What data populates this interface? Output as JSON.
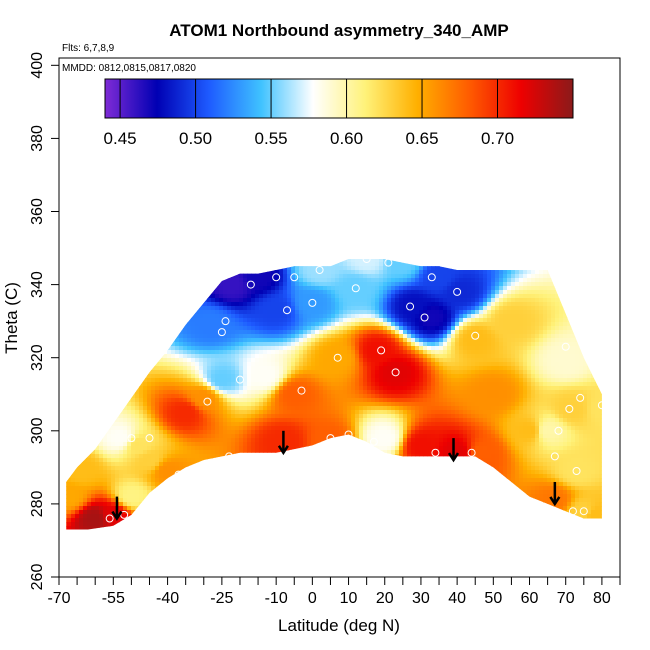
{
  "chart_data": {
    "type": "heatmap",
    "title": "ATOM1 Northbound asymmetry_340_AMP",
    "flights_note": "Flts: 6,7,8,9",
    "dates_note": "MMDD: 0812,0815,0817,0820",
    "xlabel": "Latitude (deg N)",
    "ylabel": "Theta (C)",
    "xlim": [
      -70,
      85
    ],
    "ylim": [
      260,
      402
    ],
    "x_ticks_major": [
      -70,
      -55,
      -40,
      -25,
      -10,
      0,
      10,
      20,
      30,
      40,
      50,
      60,
      70,
      80
    ],
    "x_ticks_minor": [
      -65,
      -60,
      -50,
      -45,
      -35,
      -30,
      -20,
      -15,
      -5,
      5,
      15,
      25,
      35,
      45,
      55,
      65,
      75,
      85
    ],
    "y_ticks": [
      260,
      280,
      300,
      320,
      340,
      360,
      380,
      400
    ],
    "colorbar": {
      "range": [
        0.44,
        0.75
      ],
      "ticks": [
        0.45,
        0.5,
        0.55,
        0.6,
        0.65,
        0.7
      ],
      "tick_labels": [
        "0.45",
        "0.50",
        "0.55",
        "0.60",
        "0.65",
        "0.70"
      ],
      "colors": [
        "#7f2bd6",
        "#0000b3",
        "#1e5bff",
        "#3fc2ff",
        "#ffffff",
        "#fff27a",
        "#ffb000",
        "#ff5c00",
        "#ee0000",
        "#8b1a1a"
      ]
    },
    "domain_boundary": {
      "lat": [
        -68,
        -62,
        -55,
        -50,
        -45,
        -40,
        -35,
        -30,
        -25,
        -20,
        -15,
        -10,
        -5,
        0,
        5,
        10,
        15,
        20,
        25,
        30,
        35,
        40,
        45,
        50,
        55,
        60,
        65,
        70,
        75,
        80,
        80,
        75,
        70,
        65,
        60,
        55,
        50,
        45,
        40,
        35,
        30,
        25,
        20,
        15,
        10,
        5,
        0,
        -5,
        -10,
        -15,
        -20,
        -25,
        -30,
        -35,
        -40,
        -45,
        -50,
        -55,
        -60,
        -65,
        -68
      ],
      "theta": [
        273,
        273,
        274,
        277,
        283,
        287,
        290,
        292,
        293,
        294,
        294,
        294,
        295,
        296,
        298,
        299,
        297,
        294,
        293,
        293,
        293,
        293,
        293,
        290,
        286,
        282,
        280,
        278,
        276,
        276,
        310,
        320,
        332,
        344,
        344,
        344,
        344,
        344,
        344,
        345,
        345,
        346,
        347,
        347,
        347,
        345,
        345,
        345,
        344,
        343,
        343,
        341,
        335,
        329,
        322,
        316,
        309,
        302,
        295,
        290,
        286
      ]
    },
    "samples": [
      {
        "lat": -60,
        "theta": 276,
        "value": 0.74
      },
      {
        "lat": -55,
        "theta": 277,
        "value": 0.72
      },
      {
        "lat": -50,
        "theta": 282,
        "value": 0.61
      },
      {
        "lat": -45,
        "theta": 292,
        "value": 0.63
      },
      {
        "lat": -40,
        "theta": 289,
        "value": 0.66
      },
      {
        "lat": -35,
        "theta": 305,
        "value": 0.7
      },
      {
        "lat": -30,
        "theta": 309,
        "value": 0.66
      },
      {
        "lat": -28,
        "theta": 329,
        "value": 0.52
      },
      {
        "lat": -25,
        "theta": 314,
        "value": 0.55
      },
      {
        "lat": -22,
        "theta": 340,
        "value": 0.46
      },
      {
        "lat": -15,
        "theta": 342,
        "value": 0.47
      },
      {
        "lat": -13,
        "theta": 315,
        "value": 0.58
      },
      {
        "lat": -10,
        "theta": 333,
        "value": 0.5
      },
      {
        "lat": -8,
        "theta": 297,
        "value": 0.7
      },
      {
        "lat": -5,
        "theta": 310,
        "value": 0.68
      },
      {
        "lat": 0,
        "theta": 335,
        "value": 0.53
      },
      {
        "lat": 2,
        "theta": 344,
        "value": 0.56
      },
      {
        "lat": 5,
        "theta": 297,
        "value": 0.68
      },
      {
        "lat": 7,
        "theta": 320,
        "value": 0.65
      },
      {
        "lat": 12,
        "theta": 339,
        "value": 0.55
      },
      {
        "lat": 15,
        "theta": 347,
        "value": 0.57
      },
      {
        "lat": 18,
        "theta": 322,
        "value": 0.71
      },
      {
        "lat": 20,
        "theta": 298,
        "value": 0.58
      },
      {
        "lat": 23,
        "theta": 316,
        "value": 0.72
      },
      {
        "lat": 25,
        "theta": 346,
        "value": 0.55
      },
      {
        "lat": 28,
        "theta": 334,
        "value": 0.48
      },
      {
        "lat": 30,
        "theta": 296,
        "value": 0.71
      },
      {
        "lat": 33,
        "theta": 331,
        "value": 0.47
      },
      {
        "lat": 35,
        "theta": 342,
        "value": 0.5
      },
      {
        "lat": 40,
        "theta": 294,
        "value": 0.72
      },
      {
        "lat": 41,
        "theta": 338,
        "value": 0.49
      },
      {
        "lat": 45,
        "theta": 325,
        "value": 0.64
      },
      {
        "lat": 47,
        "theta": 294,
        "value": 0.68
      },
      {
        "lat": 50,
        "theta": 310,
        "value": 0.66
      },
      {
        "lat": 55,
        "theta": 330,
        "value": 0.63
      },
      {
        "lat": 60,
        "theta": 300,
        "value": 0.64
      },
      {
        "lat": 65,
        "theta": 300,
        "value": 0.6
      },
      {
        "lat": 67,
        "theta": 281,
        "value": 0.67
      },
      {
        "lat": 70,
        "theta": 319,
        "value": 0.59
      },
      {
        "lat": 72,
        "theta": 306,
        "value": 0.63
      },
      {
        "lat": 73,
        "theta": 289,
        "value": 0.62
      },
      {
        "lat": 75,
        "theta": 278,
        "value": 0.63
      },
      {
        "lat": 78,
        "theta": 277,
        "value": 0.64
      },
      {
        "lat": 80,
        "theta": 306,
        "value": 0.62
      },
      {
        "lat": -64,
        "theta": 289,
        "value": 0.64
      },
      {
        "lat": -53,
        "theta": 298,
        "value": 0.58
      },
      {
        "lat": -48,
        "theta": 296,
        "value": 0.62
      },
      {
        "lat": -67,
        "theta": 282,
        "value": 0.65
      }
    ],
    "circled_samples": [
      {
        "lat": -56,
        "theta": 276
      },
      {
        "lat": -52,
        "theta": 277
      },
      {
        "lat": -50,
        "theta": 298
      },
      {
        "lat": -45,
        "theta": 298
      },
      {
        "lat": -37,
        "theta": 288
      },
      {
        "lat": -29,
        "theta": 308
      },
      {
        "lat": -27,
        "theta": 291
      },
      {
        "lat": -25,
        "theta": 327
      },
      {
        "lat": -24,
        "theta": 330
      },
      {
        "lat": -23,
        "theta": 293
      },
      {
        "lat": -20,
        "theta": 314
      },
      {
        "lat": -17,
        "theta": 340
      },
      {
        "lat": -10,
        "theta": 342
      },
      {
        "lat": -7,
        "theta": 333
      },
      {
        "lat": -5,
        "theta": 342
      },
      {
        "lat": -3,
        "theta": 311
      },
      {
        "lat": 0,
        "theta": 335
      },
      {
        "lat": 2,
        "theta": 344
      },
      {
        "lat": 5,
        "theta": 298
      },
      {
        "lat": 7,
        "theta": 320
      },
      {
        "lat": 10,
        "theta": 299
      },
      {
        "lat": 12,
        "theta": 339
      },
      {
        "lat": 15,
        "theta": 347
      },
      {
        "lat": 17,
        "theta": 297
      },
      {
        "lat": 19,
        "theta": 322
      },
      {
        "lat": 21,
        "theta": 346
      },
      {
        "lat": 23,
        "theta": 316
      },
      {
        "lat": 27,
        "theta": 334
      },
      {
        "lat": 31,
        "theta": 331
      },
      {
        "lat": 33,
        "theta": 342
      },
      {
        "lat": 34,
        "theta": 294
      },
      {
        "lat": 40,
        "theta": 338
      },
      {
        "lat": 44,
        "theta": 294
      },
      {
        "lat": 45,
        "theta": 326
      },
      {
        "lat": 68,
        "theta": 300
      },
      {
        "lat": 70,
        "theta": 323
      },
      {
        "lat": 71,
        "theta": 306
      },
      {
        "lat": 72,
        "theta": 278
      },
      {
        "lat": 73,
        "theta": 289
      },
      {
        "lat": 74,
        "theta": 309
      },
      {
        "lat": 75,
        "theta": 278
      },
      {
        "lat": 80,
        "theta": 307
      },
      {
        "lat": 67,
        "theta": 293
      }
    ],
    "arrows": [
      {
        "lat": -54,
        "theta": 282
      },
      {
        "lat": -8,
        "theta": 300
      },
      {
        "lat": 39,
        "theta": 298
      },
      {
        "lat": 67,
        "theta": 286
      }
    ]
  }
}
